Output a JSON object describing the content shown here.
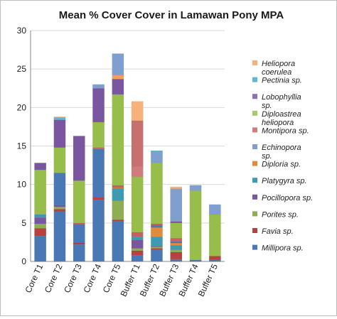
{
  "chart_data": {
    "type": "bar",
    "stacked": true,
    "title": "Mean % Cover Cover in Lamawan Pony MPA",
    "xlabel": "",
    "ylabel": "",
    "ylim": [
      0,
      30
    ],
    "yticks": [
      "0",
      "5",
      "10",
      "15",
      "20",
      "25",
      "30"
    ],
    "grid": true,
    "legend_position": "right",
    "categories": [
      "Core T1",
      "Core T2",
      "Core T3",
      "Core T4",
      "Core T5",
      "Buffer T1",
      "Buffer T2",
      "Buffer T3",
      "Buffer T4",
      "Buffer T5"
    ],
    "series": [
      {
        "name": "Millipora sp.",
        "color": "#4a78b4",
        "values": [
          3.3,
          6.5,
          2.2,
          8.0,
          5.2,
          0.8,
          1.5,
          0.3,
          0.2,
          0.2
        ]
      },
      {
        "name": "Favia sp.",
        "color": "#b84040",
        "values": [
          1.0,
          0.3,
          0.2,
          0.3,
          0.2,
          0.6,
          0.2,
          0.9,
          0.0,
          0.5
        ]
      },
      {
        "name": "Porites sp.",
        "color": "#8fad52",
        "values": [
          0.6,
          0.3,
          0.0,
          0.0,
          2.5,
          0.3,
          0.2,
          0.3,
          0.0,
          0.0
        ]
      },
      {
        "name": "Pocillopora sp.",
        "color": "#7a55a0",
        "values": [
          0.8,
          0.2,
          0.0,
          0.0,
          0.0,
          1.1,
          0.1,
          0.0,
          0.0,
          0.0
        ]
      },
      {
        "name": "Platygyra sp.",
        "color": "#3d9ab0",
        "values": [
          0.4,
          0.0,
          0.0,
          0.0,
          1.6,
          0.4,
          1.2,
          0.6,
          0.0,
          0.0
        ]
      },
      {
        "name": "Diploria sp.",
        "color": "#e08a3c",
        "values": [
          0.0,
          0.0,
          0.0,
          0.0,
          0.1,
          0.0,
          1.2,
          0.3,
          0.0,
          0.0
        ]
      },
      {
        "name": "Echinopora sp.",
        "color": "#4a78b4",
        "values": [
          0.0,
          4.2,
          2.4,
          6.3,
          0.0,
          0.0,
          0.3,
          0.2,
          0.0,
          0.0
        ]
      },
      {
        "name": "Montipora sp.",
        "color": "#c86060",
        "values": [
          0.0,
          0.0,
          0.2,
          0.2,
          0.3,
          0.6,
          0.2,
          0.4,
          0.0,
          0.0
        ]
      },
      {
        "name": "Diploastrea heliopora",
        "color": "#97bd4a",
        "values": [
          5.8,
          3.3,
          5.5,
          3.3,
          11.8,
          7.2,
          7.9,
          2.0,
          9.0,
          5.4
        ]
      },
      {
        "name": "Lobophyllia sp.",
        "color": "#7a55a0",
        "values": [
          0.9,
          3.6,
          5.8,
          4.4,
          2.0,
          0.0,
          0.0,
          0.2,
          0.0,
          0.0
        ]
      },
      {
        "name": "Montipora sp.",
        "color": "#d07c7c",
        "values": [
          0.0,
          0.0,
          0.0,
          0.0,
          0.0,
          1.3,
          0.0,
          0.0,
          0.0,
          0.0
        ]
      },
      {
        "name": "Montipora sp.",
        "color": "#c87070",
        "values": [
          0.0,
          0.0,
          0.0,
          0.0,
          0.0,
          6.0,
          0.0,
          0.0,
          0.0,
          0.0
        ]
      },
      {
        "name": "Echinopora sp.",
        "color": "#7f9fcf",
        "values": [
          0.0,
          0.0,
          0.0,
          0.0,
          0.0,
          0.0,
          1.5,
          4.2,
          0.7,
          1.3
        ]
      },
      {
        "name": "Diploria sp.",
        "color": "#f0a060",
        "values": [
          0.0,
          0.0,
          0.0,
          0.0,
          0.5,
          0.0,
          0.0,
          0.1,
          0.0,
          0.0
        ]
      },
      {
        "name": "Echinopora sp.",
        "color": "#7f9fcf",
        "values": [
          0.0,
          0.0,
          0.0,
          0.5,
          2.8,
          0.0,
          0.0,
          0.0,
          0.0,
          0.0
        ]
      },
      {
        "name": "Pectinia sp.",
        "color": "#60b8d0",
        "values": [
          0.0,
          0.3,
          0.0,
          0.0,
          0.0,
          0.0,
          0.1,
          0.0,
          0.0,
          0.0
        ]
      },
      {
        "name": "Heliopora coerulea",
        "color": "#f7b27a",
        "values": [
          0.0,
          0.1,
          0.0,
          0.0,
          0.0,
          2.5,
          0.0,
          0.2,
          0.0,
          0.0
        ]
      }
    ],
    "legend": [
      {
        "label_lines": [
          "Heliopora",
          "coerulea"
        ],
        "color": "#f7b27a"
      },
      {
        "label_lines": [
          "Pectinia sp."
        ],
        "color": "#60b8d0"
      },
      {
        "label_lines": [
          "Lobophyllia",
          "sp."
        ],
        "color": "#8c72b0"
      },
      {
        "label_lines": [
          "Diploastrea",
          "heliopora"
        ],
        "color": "#a8c870"
      },
      {
        "label_lines": [
          "Montipora sp."
        ],
        "color": "#d07c7c"
      },
      {
        "label_lines": [
          "Echinopora",
          "sp."
        ],
        "color": "#7f9fcf"
      },
      {
        "label_lines": [
          "Diploria sp."
        ],
        "color": "#e08a3c"
      },
      {
        "label_lines": [
          "Platygyra sp."
        ],
        "color": "#3d9ab0"
      },
      {
        "label_lines": [
          "Pocillopora sp."
        ],
        "color": "#7a55a0"
      },
      {
        "label_lines": [
          "Porites sp."
        ],
        "color": "#8fad52"
      },
      {
        "label_lines": [
          "Favia sp."
        ],
        "color": "#b84040"
      },
      {
        "label_lines": [
          "Millipora sp."
        ],
        "color": "#4a78b4"
      }
    ]
  }
}
